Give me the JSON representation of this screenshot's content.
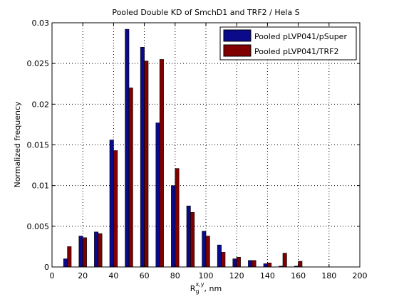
{
  "chart_data": {
    "type": "bar",
    "title": "Pooled Double KD of SmchD1 and TRF2 / Hela S",
    "xlabel": {
      "main": "R",
      "sub": "g",
      "sup": "x,y",
      "unit": ", nm"
    },
    "ylabel": "Normalized frequency",
    "xlim": [
      0,
      200
    ],
    "ylim": [
      0,
      0.03
    ],
    "x_ticks": [
      0,
      20,
      40,
      60,
      80,
      100,
      120,
      140,
      160,
      180,
      200
    ],
    "x_tick_labels": [
      "0",
      "20",
      "40",
      "60",
      "80",
      "100",
      "120",
      "140",
      "160",
      "180",
      "200"
    ],
    "y_ticks": [
      0,
      0.005,
      0.01,
      0.015,
      0.02,
      0.025,
      0.03
    ],
    "y_tick_labels": [
      "0",
      "0.005",
      "0.01",
      "0.015",
      "0.02",
      "0.025",
      "0.03"
    ],
    "grid": true,
    "legend_position": "top-right",
    "x": [
      10,
      20,
      30,
      40,
      50,
      60,
      70,
      80,
      90,
      100,
      110,
      120,
      130,
      140,
      150,
      160
    ],
    "series": [
      {
        "name": "Pooled pLVP041/pSuper",
        "color": "#0a0a8a",
        "values": [
          0.001,
          0.0038,
          0.0043,
          0.0156,
          0.0292,
          0.027,
          0.0177,
          0.01,
          0.0075,
          0.0044,
          0.0027,
          0.001,
          0.0008,
          0.0004,
          0.0001,
          0.0001
        ]
      },
      {
        "name": "Pooled pLVP041/TRF2",
        "color": "#800000",
        "values": [
          0.0025,
          0.0036,
          0.0041,
          0.0143,
          0.022,
          0.0253,
          0.0255,
          0.0121,
          0.0067,
          0.0038,
          0.0018,
          0.0012,
          0.0008,
          0.0005,
          0.0017,
          0.0007
        ]
      }
    ]
  },
  "icons": {
    "legend_swatch_1": "swatch-icon",
    "legend_swatch_2": "swatch-icon"
  }
}
